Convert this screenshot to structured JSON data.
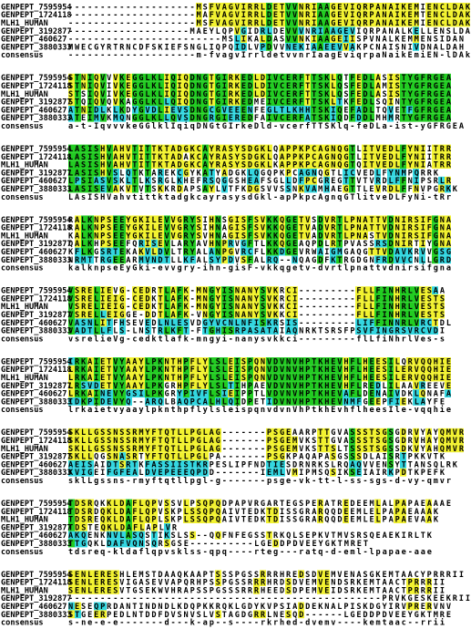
{
  "blocks": [
    {
      "rows": [
        {
          "name": "GENPEPT_7595954",
          "seq": "--------------------MSFVAGVIRRLDETVVNRIAAGEVIQRPANAIKEMIENCLDAK"
        },
        {
          "name": "GENPEPT_1724118",
          "seq": "--------------------MAFVAGVIRRLDETVVNRIAAGEVIQRPANAIKEMTENCLDAK"
        },
        {
          "name": "MLH1_HUMAN",
          "seq": "--------------------MSFVAGVIRRLDETVVNRIAAGEVIQRPANAIKEMIENCLDAK"
        },
        {
          "name": "GENPEPT_3192877",
          "seq": "-------------------MAEYLQPVGIDRLDEVVVNRIAAGEVIQRPANALKELLENSLDAQ"
        },
        {
          "name": "GENPEPT_460627",
          "seq": "------------------------MSLIKALDASVVNKIAAGEIISPVNALKEMMENSIDAN"
        },
        {
          "name": "GENPEPT_3880333",
          "seq": "MWECGYRTRNCDFSKIEFSNGLIQPQIDLVPDVVNEKIAAEEVVAKPCNAISNIVDNALDAH"
        }
      ],
      "consensus": {
        "name": "consensus",
        "seq": "--------------------m-fvagvIrrldetvvnrIaagEviqrpaNaikEmiEN-lDAk"
      }
    },
    {
      "rows": [
        {
          "name": "GENPEPT_7595954",
          "seq": "STNIQVVVKEGGLKLIQIQDNGTGIRKEDLDIVCERFTTSKLQTFEDLASISTYGFRGEA"
        },
        {
          "name": "GENPEPT_1724118",
          "seq": "STNIQVIVKEGGLKLIQIQDNGTGIRKEDLDIVCERFTTSKLQSFEDLAMISTYGFRGEA"
        },
        {
          "name": "MLH1_HUMAN",
          "seq": "STSIQVIVKEGGLKLIQIQDNGTGIRKEDLDIVCERFTTSKLQSFEDLASISTYGFRGEA"
        },
        {
          "name": "GENPEPT_3192877",
          "seq": "STQIQVQVKAGGLKLLQIQDNGTGIRKEDMEIVCERFTTSKLTKFEDLSQINTYGFRGEA"
        },
        {
          "name": "GENPEPT_460627",
          "seq": "ATNIDLKLKDYGVDLIEVSDNGCGVEEENFEGLTLKHHTSKIQEFADLTQVETFGFRGEA"
        },
        {
          "name": "GENPEPT_3880333",
          "seq": "ATEIMVKMQNGGLKLLQVSDNGRGIEREDFAIVCERFATSKIQDFDDLMHMRTYGFRGEA"
        }
      ],
      "consensus": {
        "name": "consensus",
        "seq": "a-t-IqvvvkeGGlklIqiqDNGtGIrkeDld-vcerfTTSKlq-feDLa-ist-yGFRGEA"
      }
    },
    {
      "rows": [
        {
          "name": "GENPEPT_7595954",
          "seq": "LASISHVAHVTITTKTADGKCAYRASYSDGKLQAPPKPCAGNQGTLITVEDLFYNIITRR"
        },
        {
          "name": "GENPEPT_1724118",
          "seq": "LASISHVAHVTITTKTADAKCAYRASYSDGKLQAPPKPCAGNQGTLITVEDLFYNIITRR"
        },
        {
          "name": "MLH1_HUMAN",
          "seq": "LASISHVAHVTITTKTADGKCAYRASYSDGKLKAPPKPCAGNQGTQITVEDLFYNIATRR"
        },
        {
          "name": "GENPEPT_3192877",
          "seq": "LASISHVSLQTKTAREKCGYKATYADGKLQGQPKPCAGNQGTLICVEDLFYNMPQRRK"
        },
        {
          "name": "GENPEPT_460627",
          "seq": "LPSIASVSKLTLKSRGLKHEFRSQGGSHEAFSGLLDFPCGREGTTVTVRDLFFNIPSRLR"
        },
        {
          "name": "GENPEPT_3880333",
          "seq": "LASISEVAKVTVTSKKRDAPSAYLVTFKDGSVVSSNKVAMHAEGTTLEVRDLFFNVPGRKK"
        }
      ],
      "consensus": {
        "name": "consensus",
        "seq": "LAsISHVahvtittktadgkcayrasysdGkl-apPkpcAgnqGTlitveDLFyNi-tRr"
      }
    },
    {
      "rows": [
        {
          "name": "GENPEPT_7595954",
          "seq": "RALKNPSEEYGKILEVVGRYSIHNSGISFSVKKQGETVSDVRTLPNATTVDNIRSIFGNA"
        },
        {
          "name": "GENPEPT_1724118",
          "seq": "RALKNPSEEYGKILEVVGRYSIHNAGISFSVKKQGETVADVRTLPNATTVDNIRSIFGNA"
        },
        {
          "name": "MLH1_HUMAN",
          "seq": "KALKNPSEEYGKILEVVGRYSVHNAGISFSVKKQGETVADVRTLPNASTVDNIRSIFGNA"
        },
        {
          "name": "GENPEPT_3192877",
          "seq": "QALKHPSEEFQRISEVLARYAVHNPRVGFTLKKQGEAQPDLRTPVASSRSDNIRTIYGNA"
        },
        {
          "name": "GENPEPT_460627",
          "seq": "KFLKGSRTEKAKVLDVLTRYALANPGVRCFLKKDGEVRWAIGMGAQGTTVDAVKRVVGSG"
        },
        {
          "name": "GENPEPT_3880333",
          "seq": "NRMTTRGEEARMVNDTLLKFALSYPDVSFALRQ--NQAGDFKTRGDGNFRDVVCNLLGRD"
        }
      ],
      "consensus": {
        "name": "consensus",
        "seq": "kalknpseEyGki-evvgry-ihn-gisF-vkkqgetv-dvrtlpnattvdnirsifgna"
      }
    },
    {
      "rows": [
        {
          "name": "GENPEPT_7595954",
          "seq": "VSRELIEVG-CEDRTLAFK-MNGYISNANYSVKRCI---------FLLFINHRLVESAA"
        },
        {
          "name": "GENPEPT_1724118",
          "seq": "VSRELIEIG-CEDKTLAFK-MNGYISNANYSVKRCI---------FLLFINHRLVESTS"
        },
        {
          "name": "MLH1_HUMAN",
          "seq": "VSRELIEIG-CEDKTLAFK-MNGYISNANYSVKKCI---------FLLFINHRLVESTS"
        },
        {
          "name": "GENPEPT_3192877",
          "seq": "VSRELLEIGGE-DDTLAFK-VNGYISNANYSVKKCI---------FLLFINHRLVESTS"
        },
        {
          "name": "GENPEPT_460627",
          "seq": "VASNLITFHSEVEDLNLESVDGYVCNLNFISKRSIS---------LIFFINNRLVRCTDL"
        },
        {
          "name": "GENPEPT_3880333",
          "seq": "VADTLLFLS-LNSTRLKFT-FTGHISRPASATAIAQNRKTSRSFPSVFINGRSVRCVDI"
        }
      ],
      "consensus": {
        "name": "consensus",
        "seq": "vsrelieVg-cedktlafk-mngyi-nanysvkkci---------flLfiNhrlVes-s"
      }
    },
    {
      "rows": [
        {
          "name": "GENPEPT_7595954",
          "seq": "IRKAIETVYAAYLPKNTHPFLYLSLEISPQNVDVNVHPTKHEVHFLHEESILQRVQQHIE"
        },
        {
          "name": "GENPEPT_1724118",
          "seq": "LRKAIETVYAAYLPKNTHPFLYLSLEISPQNVDVNVHPTKHEVHFLHEESILERVQQHIE"
        },
        {
          "name": "MLH1_HUMAN",
          "seq": "LRKAIETVYAAYLPKNTHPFLYLSLEISPQNVDVNVHPTKHEVHFLHEESILERVQQHIE"
        },
        {
          "name": "GENPEPT_3192877",
          "seq": "LRSVDETVYAAYLPKGRHPFLYLSLTIHPAEVDVNVHPTKHEVHFLREDLILAAVREEVE"
        },
        {
          "name": "GENPEPT_460627",
          "seq": "LRKAINEVYGSILPKGRYPIVFLSIEIPPTLVDVNVHPTKHEVAFLDENAIVDKLQNAFA"
        },
        {
          "name": "GENPEPT_3880333",
          "seq": "IDKPIDEVYQ--ARQLBAQPCALHLQIDPETIDVNVHPTKHEVNMFGEEPFIEKLAYFE"
        }
      ],
      "consensus": {
        "name": "consensus",
        "seq": "lrkaietvyaaylpknthpflylsleispqnvdvnVhPtkhEvhflheesIle-vqqhie"
      }
    },
    {
      "rows": [
        {
          "name": "GENPEPT_7595954",
          "seq": "SKLLGSSNSSRMYFTQTLLPGLAG-------PSGEAARPTTGVASSSTSGSGDRVYAYQMVR"
        },
        {
          "name": "GENPEPT_1724118",
          "seq": "SKLLGSSNSSRMYFTQTLLPGLAG-------PSGEMVKSTTGVASSSTSGSGDRVHAYQMVR"
        },
        {
          "name": "MLH1_HUMAN",
          "seq": "SKLLGSSNSSRMYFTQTLLPGLAG-------PSGEMVKSTTSLTSSSTSGSSDKVYAHQMVR"
        },
        {
          "name": "GENPEPT_3192877",
          "seq": "SKLLQGSNASRTYFTQTLLPGLPA-------PSGKPAQAPASGSSSDLAISRTPKKVTK"
        },
        {
          "name": "GENPEPT_460627",
          "seq": "AEISAIDTSRTKFASSIISTKRPESLIPFNDTIESDRNRKSLRQAQVVENSYTTANSQLRK"
        },
        {
          "name": "GENPEPT_3880333",
          "seq": "KVIGEIFGFEALDVEPEEEQPDD-------IEMLVMIPMSQSIKSEIAIRKPDTKPEFK"
        }
      ],
      "consensus": {
        "name": "consensus",
        "seq": "sklLgssns-rmyftqtllpgl-g-------psge-vk-tt-l-ss-sgs-d-vy-qmvr"
      }
    },
    {
      "rows": [
        {
          "name": "GENPEPT_7595954",
          "seq": "TDSRQKKLDAFLQPVSSVLPSQPQDPAPVRGARTEGSPERATREDEEMLALPAPAEAAAE"
        },
        {
          "name": "GENPEPT_1724118",
          "seq": "TDSRDQKLDAFLQPVSKPLSSQPQAIVTEDKTDISSGRARQQDEEMLELPAPAEAAAK"
        },
        {
          "name": "MLH1_HUMAN",
          "seq": "TDSREQKLDAFLQPLSKPLSSQPQAIVTEDKTDISSGRARQQDEEMLELPAPAEVAAK"
        },
        {
          "name": "GENPEPT_3192877",
          "seq": "TDSTEQKLDAFLAPLVR"
        },
        {
          "name": "GENPEPT_460627",
          "seq": "AKQENKNVLASQSTIKSLSS--QQFNFEGSSTRKQLSEPKVTMVSRSQEAEKIRLTK"
        },
        {
          "name": "GENPEPT_3880333",
          "seq": "TTGQKLDAFVQNSQRSGSE----------LGEDDPDVEEYGKTMRET"
        }
      ],
      "consensus": {
        "name": "consensus",
        "seq": "tdsreq-kldaflqpvsklss-qpq----rteg---ratq-d-eml-lpapae-aae"
      }
    },
    {
      "rows": [
        {
          "name": "GENPEPT_7595954",
          "seq": "SENLERESHLEMSTDAAQKAAPTSSSPGSSRRRHREDSDVEMVENASGKEMTAACYPRRRII"
        },
        {
          "name": "GENPEPT_1724118",
          "seq": "SENLERESVIGASEVVAPQRHPSSPGSSRRRHRDSDVEMVENDSRKEMTAACTPRRRII"
        },
        {
          "name": "MLH1_HUMAN",
          "seq": "SENLERESVTGSEKWVHRAPSSPGSSSRRRHEEDSDPEMVEIDSRKEMTAACTPRRRII"
        },
        {
          "name": "GENPEPT_3192877",
          "seq": "-------------------------------------------------PRVKGESKEEKRII"
        },
        {
          "name": "GENPEPT_460627",
          "seq": "NESEQPRDANTINDNDLKDQPKKRQKLGDYKVPSIADDEKNALPISKDGYIRVPRERVNV"
        },
        {
          "name": "GENPEPT_3880333",
          "seq": "STGEERPEDLNTDDFDVSNVSLVSTAGDGRRLNESQD------LGEDDPDVEEYGKTMRE"
        }
      ],
      "consensus": {
        "name": "consensus",
        "seq": "s-ne-e-e-------d---k-ap--s----rkrhed-dvemv----kemtaac--rrii"
      }
    }
  ]
}
